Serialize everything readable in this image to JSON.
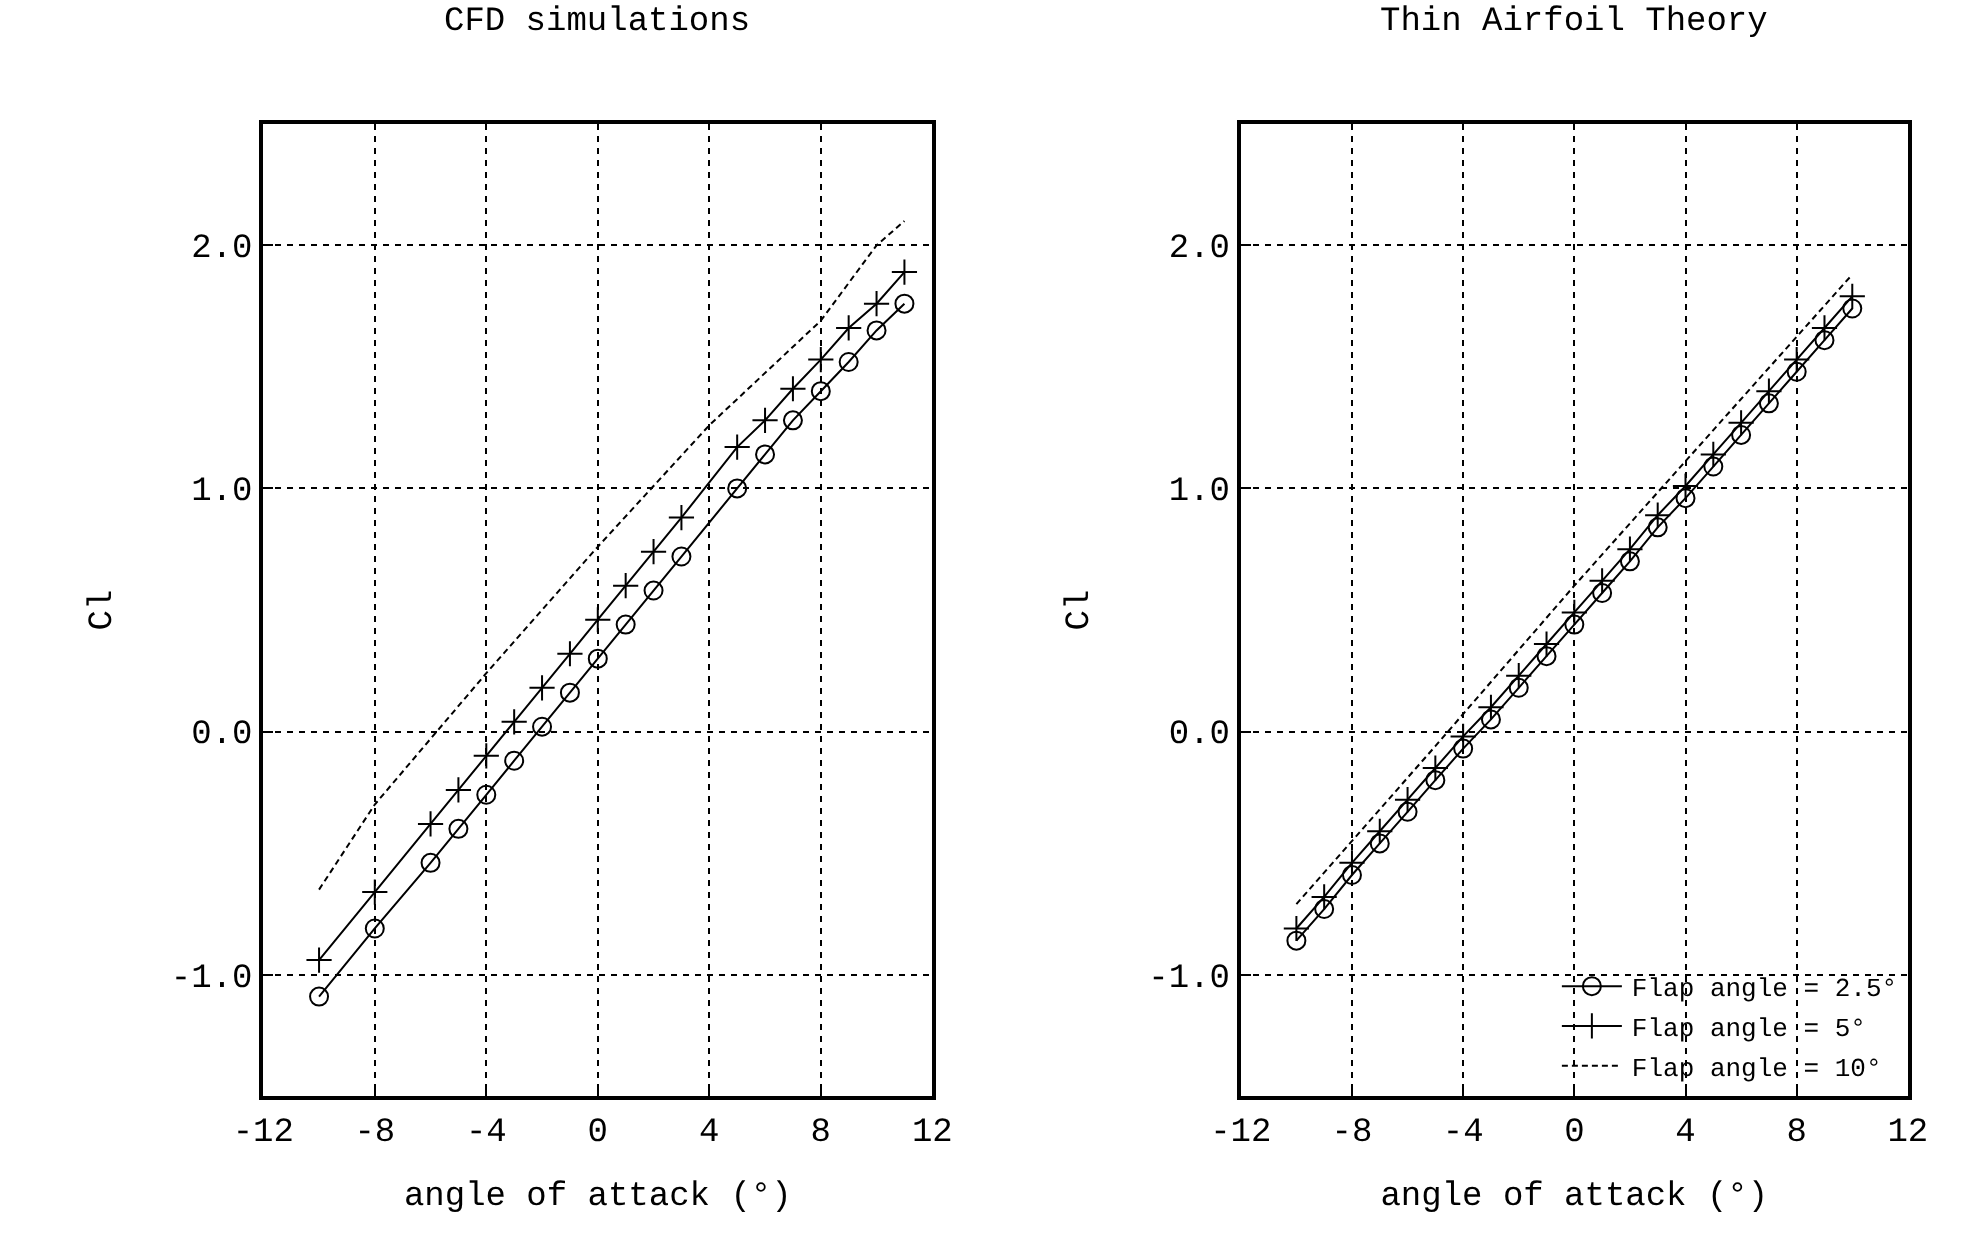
{
  "chart_data": [
    {
      "type": "line",
      "title": "CFD simulations",
      "xlabel": "angle of attack (°)",
      "ylabel": "Cl",
      "xlim": [
        -12,
        12
      ],
      "xticks": [
        -12,
        -8,
        -4,
        0,
        4,
        8,
        12
      ],
      "ylim": [
        -1.5,
        2.5
      ],
      "yticks": [
        {
          "value": -1,
          "label": "-1.0"
        },
        {
          "value": 0,
          "label": "0.0"
        },
        {
          "value": 1,
          "label": "1.0"
        },
        {
          "value": 2,
          "label": "2.0"
        }
      ],
      "grid": true,
      "legend": false,
      "series": [
        {
          "color": "#000000",
          "marker": "circle",
          "line_style": "solid",
          "x": [
            -10,
            -8,
            -6,
            -5,
            -4,
            -3,
            -2,
            -1,
            0,
            1,
            2,
            3,
            5,
            6,
            7,
            8,
            9,
            10,
            11
          ],
          "values": [
            -1.09,
            -0.81,
            -0.54,
            -0.4,
            -0.26,
            -0.12,
            0.02,
            0.16,
            0.3,
            0.44,
            0.58,
            0.72,
            1.0,
            1.14,
            1.28,
            1.4,
            1.52,
            1.65,
            1.76
          ]
        },
        {
          "color": "#000000",
          "marker": "cross",
          "line_style": "solid",
          "x": [
            -10,
            -8,
            -6,
            -5,
            -4,
            -3,
            -2,
            -1,
            0,
            1,
            2,
            3,
            5,
            6,
            7,
            8,
            9,
            10,
            11
          ],
          "values": [
            -0.94,
            -0.66,
            -0.38,
            -0.24,
            -0.1,
            0.04,
            0.18,
            0.32,
            0.46,
            0.6,
            0.74,
            0.88,
            1.17,
            1.28,
            1.41,
            1.53,
            1.66,
            1.76,
            1.89
          ]
        },
        {
          "color": "#000000",
          "marker": "none",
          "line_style": "dashed",
          "x": [
            -10,
            -8,
            -4,
            0,
            4,
            8,
            10,
            11
          ],
          "values": [
            -0.65,
            -0.3,
            0.24,
            0.76,
            1.26,
            1.69,
            2.0,
            2.1
          ]
        }
      ]
    },
    {
      "type": "line",
      "title": "Thin Airfoil Theory",
      "xlabel": "angle of attack (°)",
      "ylabel": "Cl",
      "xlim": [
        -12,
        12
      ],
      "xticks": [
        -12,
        -8,
        -4,
        0,
        4,
        8,
        12
      ],
      "ylim": [
        -1.5,
        2.5
      ],
      "yticks": [
        {
          "value": -1,
          "label": "-1.0"
        },
        {
          "value": 0,
          "label": "0.0"
        },
        {
          "value": 1,
          "label": "1.0"
        },
        {
          "value": 2,
          "label": "2.0"
        }
      ],
      "grid": true,
      "legend": "bottom right",
      "series": [
        {
          "name": "Flap angle = 2.5°",
          "color": "#000000",
          "marker": "circle",
          "line_style": "solid",
          "x": [
            -10,
            -9,
            -8,
            -7,
            -6,
            -5,
            -4,
            -3,
            -2,
            -1,
            0,
            1,
            2,
            3,
            4,
            5,
            6,
            7,
            8,
            9,
            10
          ],
          "values": [
            -0.86,
            -0.73,
            -0.59,
            -0.46,
            -0.33,
            -0.2,
            -0.07,
            0.05,
            0.18,
            0.31,
            0.44,
            0.57,
            0.7,
            0.84,
            0.96,
            1.09,
            1.22,
            1.35,
            1.48,
            1.61,
            1.74
          ]
        },
        {
          "name": "Flap angle = 5°",
          "color": "#000000",
          "marker": "cross",
          "line_style": "solid",
          "x": [
            -10,
            -9,
            -8,
            -7,
            -6,
            -5,
            -4,
            -3,
            -2,
            -1,
            0,
            1,
            2,
            3,
            4,
            5,
            6,
            7,
            8,
            9,
            10
          ],
          "values": [
            -0.81,
            -0.68,
            -0.54,
            -0.41,
            -0.28,
            -0.15,
            -0.02,
            0.1,
            0.23,
            0.36,
            0.49,
            0.62,
            0.75,
            0.89,
            1.01,
            1.14,
            1.27,
            1.4,
            1.53,
            1.66,
            1.79
          ]
        },
        {
          "name": "Flap angle = 10°",
          "color": "#000000",
          "marker": "none",
          "line_style": "dashed",
          "x": [
            -10,
            -5,
            0,
            5,
            10
          ],
          "values": [
            -0.71,
            -0.06,
            0.6,
            1.24,
            1.88
          ]
        }
      ]
    }
  ]
}
